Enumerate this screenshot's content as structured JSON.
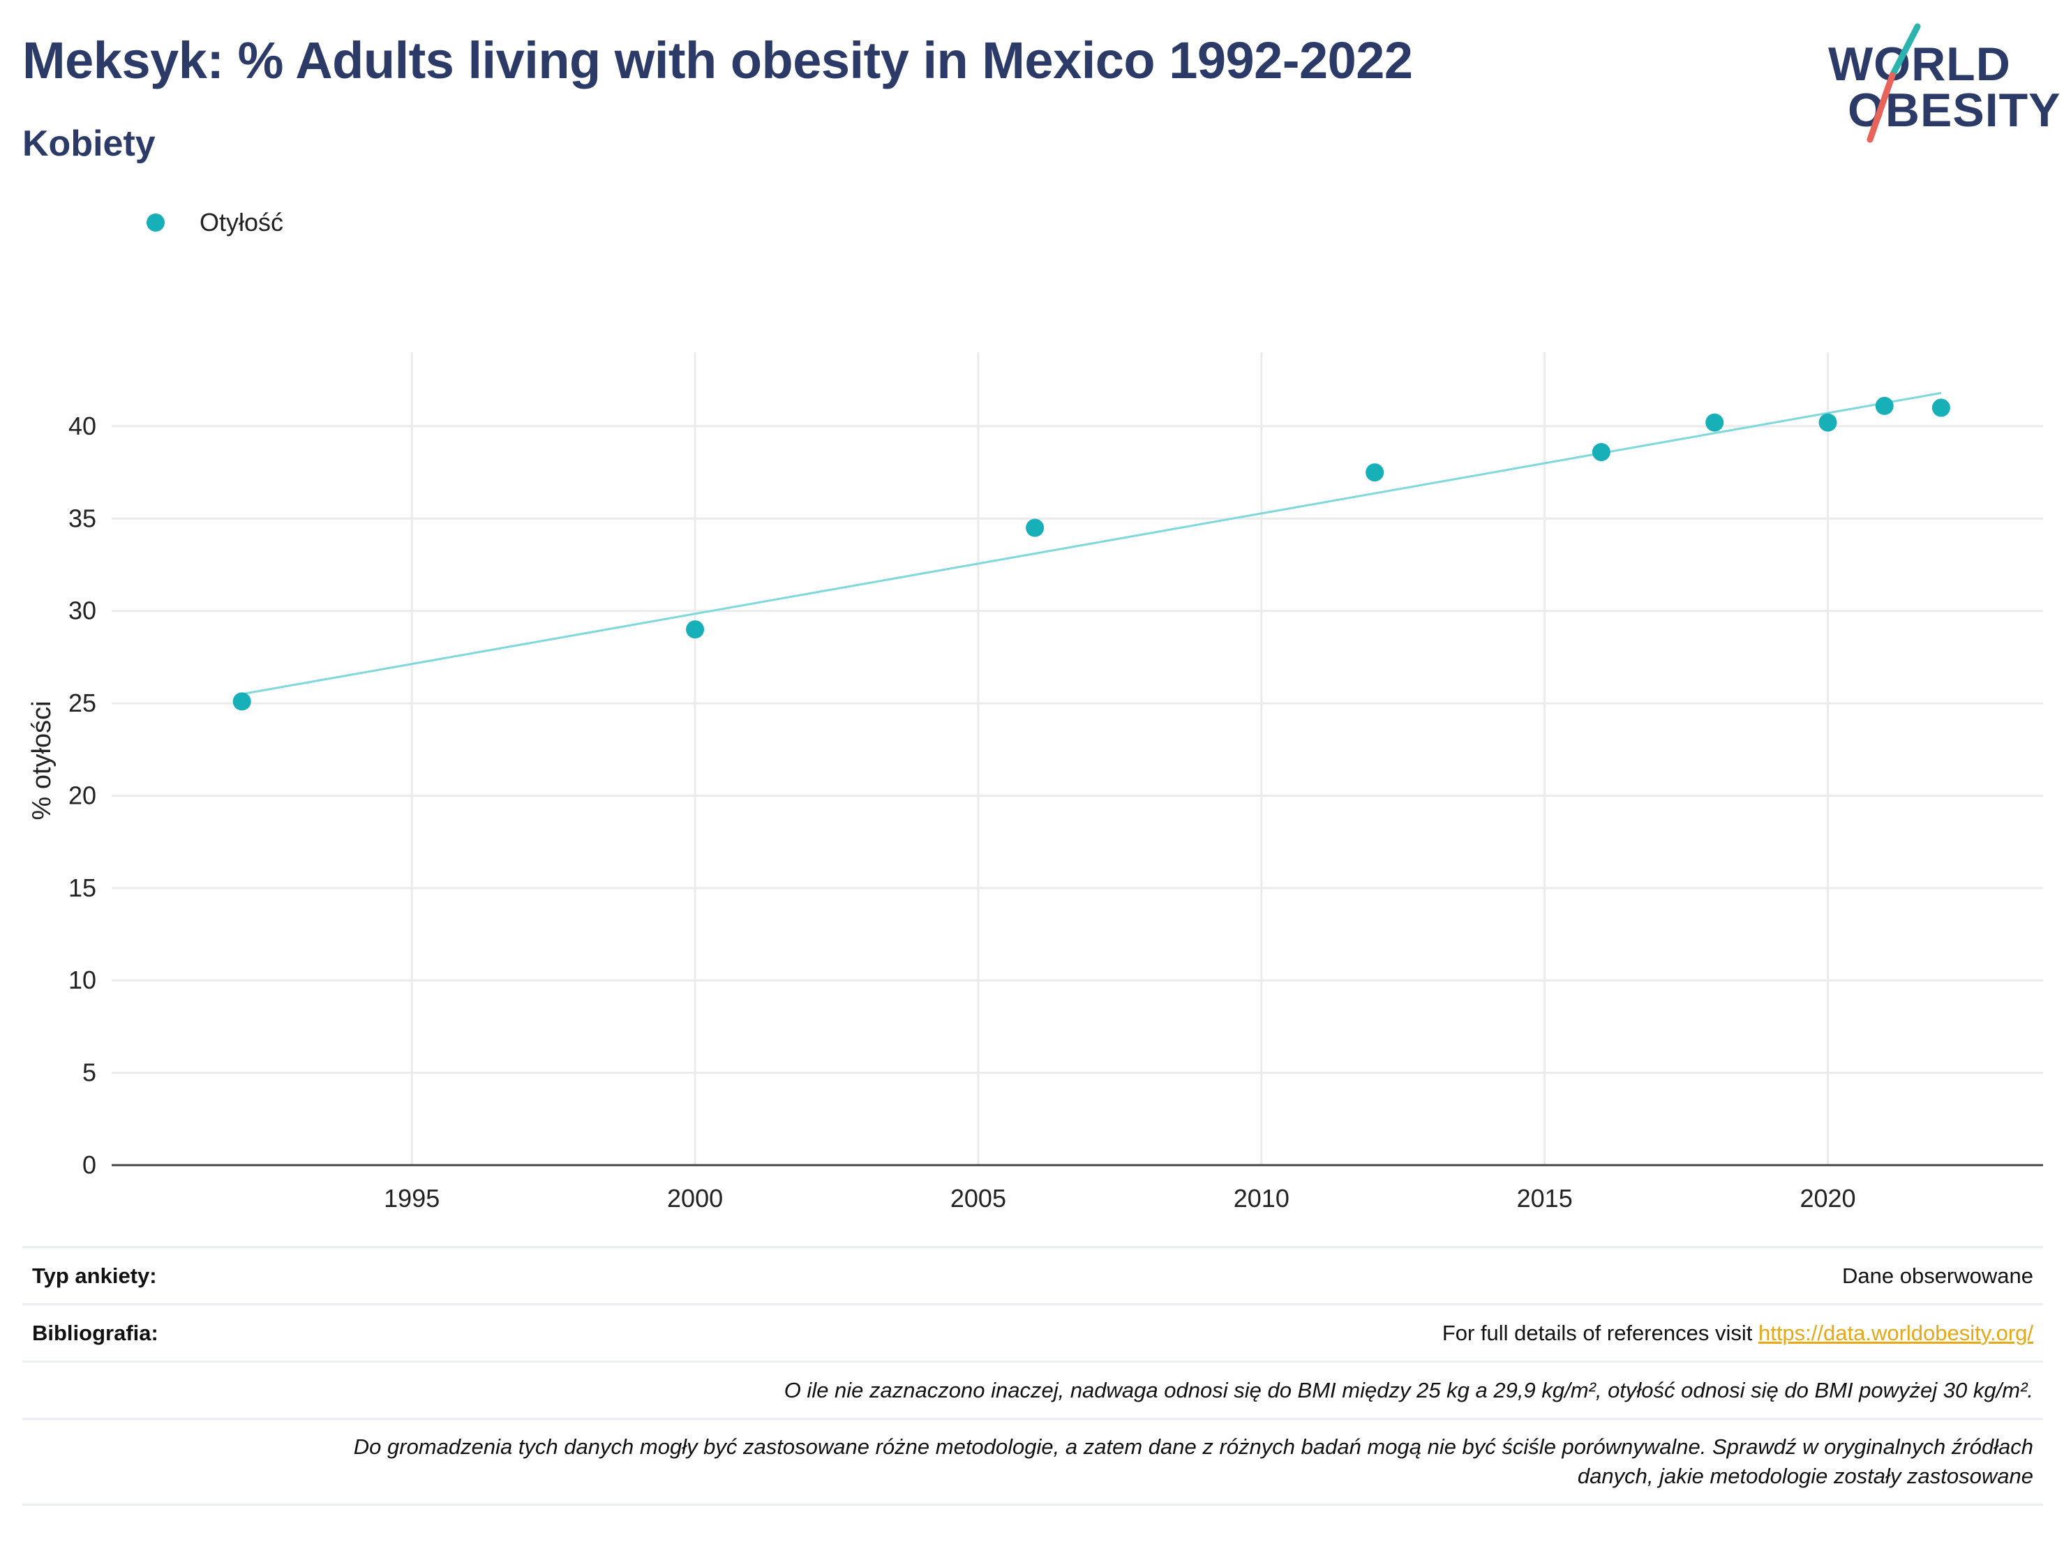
{
  "title": "Meksyk: % Adults living with obesity in Mexico 1992-2022",
  "subtitle": "Kobiety",
  "logo": {
    "line1": "WORLD",
    "line2": "OBESITY"
  },
  "legend": {
    "label": "Otyłość",
    "color": "#17b0b8"
  },
  "chart_data": {
    "type": "scatter",
    "ylabel": "% otyłości",
    "xlabel": "",
    "xlim": [
      1989.7,
      2023.8
    ],
    "ylim": [
      0,
      44
    ],
    "x_ticks": [
      1995,
      2000,
      2005,
      2010,
      2015,
      2020
    ],
    "y_ticks": [
      0,
      5,
      10,
      15,
      20,
      25,
      30,
      35,
      40
    ],
    "grid": true,
    "series": [
      {
        "name": "Otyłość",
        "color": "#17b0b8",
        "x": [
          1992,
          2000,
          2006,
          2012,
          2016,
          2018,
          2020,
          2021,
          2022
        ],
        "y": [
          25.1,
          29.0,
          34.5,
          37.5,
          38.6,
          40.2,
          40.2,
          41.1,
          41.0
        ]
      }
    ],
    "trendline": {
      "color": "#7fd8dc",
      "x": [
        1992,
        2022
      ],
      "y": [
        25.5,
        41.8
      ]
    }
  },
  "info": {
    "survey_type_label": "Typ ankiety:",
    "survey_type_value": "Dane obserwowane",
    "bibliography_label": "Bibliografia:",
    "bibliography_text": "For full details of references visit",
    "bibliography_link": "https://data.worldobesity.org/",
    "note1": "O ile nie zaznaczono inaczej, nadwaga odnosi się do BMI między 25 kg a 29,9 kg/m², otyłość odnosi się do BMI powyżej 30 kg/m².",
    "note2_line1": "Do gromadzenia tych danych mogły być zastosowane różne metodologie, a zatem dane z różnych badań mogą nie być ściśle porównywalne. Sprawdź w oryginalnych źródłach",
    "note2_line2": "danych, jakie metodologie zostały zastosowane"
  }
}
